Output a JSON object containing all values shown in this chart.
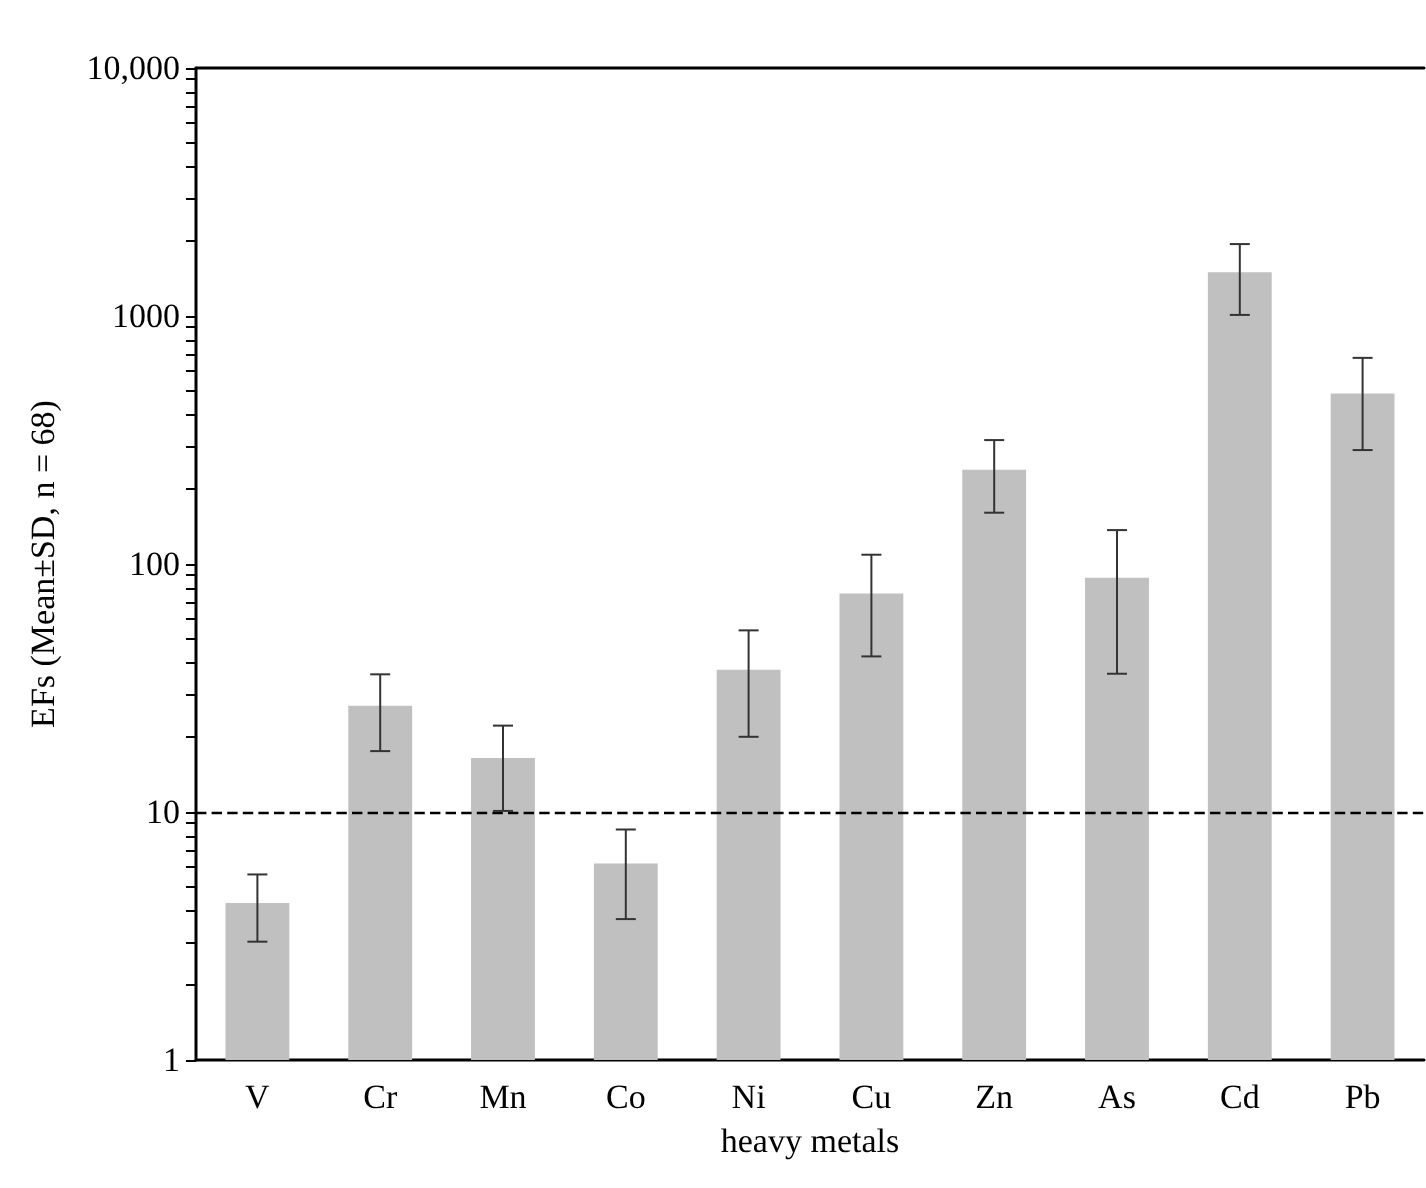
{
  "chart_data": {
    "type": "bar",
    "xlabel": "heavy metals",
    "ylabel": "EFs (Mean±SD, n = 68)",
    "categories": [
      "V",
      "Cr",
      "Mn",
      "Co",
      "Ni",
      "Cu",
      "Zn",
      "As",
      "Cd",
      "Pb"
    ],
    "values": [
      4.3,
      26.8,
      16.5,
      6.2,
      37.5,
      76,
      240,
      88,
      1500,
      487
    ],
    "errors": [
      [
        3.0,
        5.6
      ],
      [
        17.6,
        35.9
      ],
      [
        10.1,
        22.3
      ],
      [
        3.7,
        8.5
      ],
      [
        20.1,
        54
      ],
      [
        42.4,
        109
      ],
      [
        161,
        316
      ],
      [
        36.1,
        137
      ],
      [
        1010,
        1950
      ],
      [
        288,
        678
      ]
    ],
    "color": "#c0c0c0",
    "log": "y",
    "ylim": [
      1,
      10000
    ],
    "yticks": [
      1,
      {
        "value": 2,
        "label": null
      },
      {
        "value": 3,
        "label": null
      },
      {
        "value": 4,
        "label": null
      },
      {
        "value": 5,
        "label": null
      },
      {
        "value": 6,
        "label": null
      },
      {
        "value": 7,
        "label": null
      },
      {
        "value": 8,
        "label": null
      },
      {
        "value": 9,
        "label": null
      },
      10,
      {
        "value": 20,
        "label": null
      },
      {
        "value": 30,
        "label": null
      },
      {
        "value": 40,
        "label": null
      },
      {
        "value": 50,
        "label": null
      },
      {
        "value": 60,
        "label": null
      },
      {
        "value": 70,
        "label": null
      },
      {
        "value": 80,
        "label": null
      },
      {
        "value": 90,
        "label": null
      },
      100,
      {
        "value": 200,
        "label": null
      },
      {
        "value": 300,
        "label": null
      },
      {
        "value": 400,
        "label": null
      },
      {
        "value": 500,
        "label": null
      },
      {
        "value": 600,
        "label": null
      },
      {
        "value": 700,
        "label": null
      },
      {
        "value": 800,
        "label": null
      },
      {
        "value": 900,
        "label": null
      },
      1000,
      {
        "value": 2000,
        "label": null
      },
      {
        "value": 3000,
        "label": null
      },
      {
        "value": 4000,
        "label": null
      },
      {
        "value": 5000,
        "label": null
      },
      {
        "value": 6000,
        "label": null
      },
      {
        "value": 7000,
        "label": null
      },
      {
        "value": 8000,
        "label": null
      },
      {
        "value": 9000,
        "label": null
      },
      {
        "value": 10000,
        "label": "10,000"
      }
    ],
    "ref_lines": [
      {
        "axis": "y",
        "value": 10,
        "line_style": "dashed",
        "color": "#000000"
      }
    ],
    "grid": false
  }
}
